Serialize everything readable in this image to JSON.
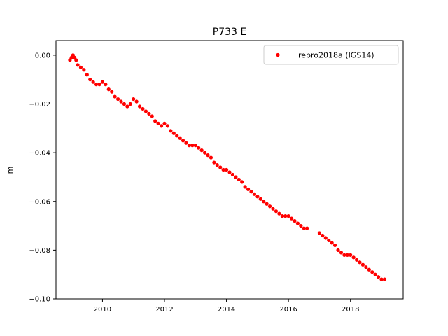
{
  "chart_data": {
    "type": "scatter",
    "title": "P733 E",
    "xlabel": "",
    "ylabel": "m",
    "xlim": [
      2008.5,
      2019.7
    ],
    "ylim": [
      -0.1,
      0.006
    ],
    "x_ticks": [
      2010,
      2012,
      2014,
      2016,
      2018
    ],
    "x_tick_labels": [
      "2010",
      "2012",
      "2014",
      "2016",
      "2018"
    ],
    "y_ticks": [
      0.0,
      -0.02,
      -0.04,
      -0.06,
      -0.08,
      -0.1
    ],
    "y_tick_labels": [
      "0.00",
      "−0.02",
      "−0.04",
      "−0.06",
      "−0.08",
      "−0.10"
    ],
    "grid": false,
    "legend": {
      "position": "top-right"
    },
    "series": [
      {
        "name": "repro2018a (IGS14)",
        "color": "#ff0000",
        "marker": "circle",
        "points": [
          [
            2008.95,
            -0.002
          ],
          [
            2009.0,
            -0.001
          ],
          [
            2009.05,
            0.0
          ],
          [
            2009.1,
            -0.001
          ],
          [
            2009.15,
            -0.002
          ],
          [
            2009.2,
            -0.004
          ],
          [
            2009.3,
            -0.005
          ],
          [
            2009.4,
            -0.006
          ],
          [
            2009.5,
            -0.008
          ],
          [
            2009.6,
            -0.01
          ],
          [
            2009.7,
            -0.011
          ],
          [
            2009.8,
            -0.012
          ],
          [
            2009.9,
            -0.012
          ],
          [
            2010.0,
            -0.011
          ],
          [
            2010.1,
            -0.012
          ],
          [
            2010.2,
            -0.014
          ],
          [
            2010.3,
            -0.015
          ],
          [
            2010.4,
            -0.017
          ],
          [
            2010.5,
            -0.018
          ],
          [
            2010.6,
            -0.019
          ],
          [
            2010.7,
            -0.02
          ],
          [
            2010.8,
            -0.021
          ],
          [
            2010.9,
            -0.02
          ],
          [
            2011.0,
            -0.018
          ],
          [
            2011.1,
            -0.019
          ],
          [
            2011.2,
            -0.021
          ],
          [
            2011.3,
            -0.022
          ],
          [
            2011.4,
            -0.023
          ],
          [
            2011.5,
            -0.024
          ],
          [
            2011.6,
            -0.025
          ],
          [
            2011.7,
            -0.027
          ],
          [
            2011.8,
            -0.028
          ],
          [
            2011.9,
            -0.029
          ],
          [
            2012.0,
            -0.028
          ],
          [
            2012.1,
            -0.029
          ],
          [
            2012.2,
            -0.031
          ],
          [
            2012.3,
            -0.032
          ],
          [
            2012.4,
            -0.033
          ],
          [
            2012.5,
            -0.034
          ],
          [
            2012.6,
            -0.035
          ],
          [
            2012.7,
            -0.036
          ],
          [
            2012.8,
            -0.037
          ],
          [
            2012.9,
            -0.037
          ],
          [
            2013.0,
            -0.037
          ],
          [
            2013.1,
            -0.038
          ],
          [
            2013.2,
            -0.039
          ],
          [
            2013.3,
            -0.04
          ],
          [
            2013.4,
            -0.041
          ],
          [
            2013.5,
            -0.042
          ],
          [
            2013.6,
            -0.044
          ],
          [
            2013.7,
            -0.045
          ],
          [
            2013.8,
            -0.046
          ],
          [
            2013.9,
            -0.047
          ],
          [
            2014.0,
            -0.047
          ],
          [
            2014.1,
            -0.048
          ],
          [
            2014.2,
            -0.049
          ],
          [
            2014.3,
            -0.05
          ],
          [
            2014.4,
            -0.051
          ],
          [
            2014.5,
            -0.052
          ],
          [
            2014.6,
            -0.054
          ],
          [
            2014.7,
            -0.055
          ],
          [
            2014.8,
            -0.056
          ],
          [
            2014.9,
            -0.057
          ],
          [
            2015.0,
            -0.058
          ],
          [
            2015.1,
            -0.059
          ],
          [
            2015.2,
            -0.06
          ],
          [
            2015.3,
            -0.061
          ],
          [
            2015.4,
            -0.062
          ],
          [
            2015.5,
            -0.063
          ],
          [
            2015.6,
            -0.064
          ],
          [
            2015.7,
            -0.065
          ],
          [
            2015.8,
            -0.066
          ],
          [
            2015.9,
            -0.066
          ],
          [
            2016.0,
            -0.066
          ],
          [
            2016.1,
            -0.067
          ],
          [
            2016.2,
            -0.068
          ],
          [
            2016.3,
            -0.069
          ],
          [
            2016.4,
            -0.07
          ],
          [
            2016.5,
            -0.071
          ],
          [
            2016.6,
            -0.071
          ],
          [
            2017.0,
            -0.073
          ],
          [
            2017.1,
            -0.074
          ],
          [
            2017.2,
            -0.075
          ],
          [
            2017.3,
            -0.076
          ],
          [
            2017.4,
            -0.077
          ],
          [
            2017.5,
            -0.078
          ],
          [
            2017.6,
            -0.08
          ],
          [
            2017.7,
            -0.081
          ],
          [
            2017.8,
            -0.082
          ],
          [
            2017.9,
            -0.082
          ],
          [
            2018.0,
            -0.082
          ],
          [
            2018.1,
            -0.083
          ],
          [
            2018.2,
            -0.084
          ],
          [
            2018.3,
            -0.085
          ],
          [
            2018.4,
            -0.086
          ],
          [
            2018.5,
            -0.087
          ],
          [
            2018.6,
            -0.088
          ],
          [
            2018.7,
            -0.089
          ],
          [
            2018.8,
            -0.09
          ],
          [
            2018.9,
            -0.091
          ],
          [
            2019.0,
            -0.092
          ],
          [
            2019.1,
            -0.092
          ]
        ]
      }
    ]
  }
}
